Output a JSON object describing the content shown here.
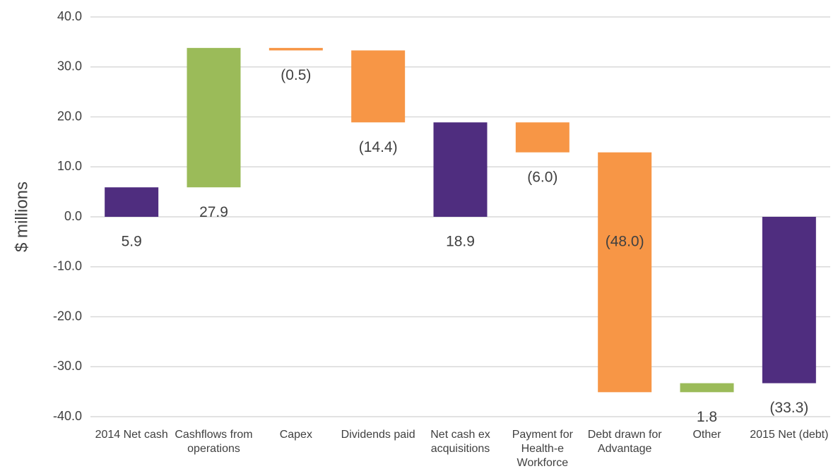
{
  "chart_data": {
    "type": "waterfall",
    "ylabel": "$ millions",
    "categories": [
      "2014 Net cash",
      "Cashflows from operations",
      "Capex",
      "Dividends paid",
      "Net cash ex acquisitions",
      "Payment for Health-e Workforce",
      "Debt drawn for Advantage",
      "Other",
      "2015 Net (debt)"
    ],
    "values": [
      5.9,
      27.9,
      -0.5,
      -14.4,
      18.9,
      -6.0,
      -48.0,
      1.8,
      -33.3
    ],
    "value_labels": [
      "5.9",
      "27.9",
      "(0.5)",
      "(14.4)",
      "18.9",
      "(6.0)",
      "(48.0)",
      "1.8",
      "(33.3)"
    ],
    "measure": [
      "total",
      "relative",
      "relative",
      "relative",
      "total",
      "relative",
      "relative",
      "relative",
      "total"
    ],
    "colors": {
      "total": "#4f2d7f",
      "increase": "#9bbb59",
      "decrease": "#f79646"
    },
    "ylim": [
      -40,
      40
    ],
    "yticks": [
      {
        "value": -40,
        "label": "-40.0"
      },
      {
        "value": -30,
        "label": "-30.0"
      },
      {
        "value": -20,
        "label": "-20.0"
      },
      {
        "value": -10,
        "label": "-10.0"
      },
      {
        "value": 0,
        "label": "0.0"
      },
      {
        "value": 10,
        "label": "10.0"
      },
      {
        "value": 20,
        "label": "20.0"
      },
      {
        "value": 30,
        "label": "30.0"
      },
      {
        "value": 40,
        "label": "40.0"
      }
    ],
    "grid": true
  }
}
